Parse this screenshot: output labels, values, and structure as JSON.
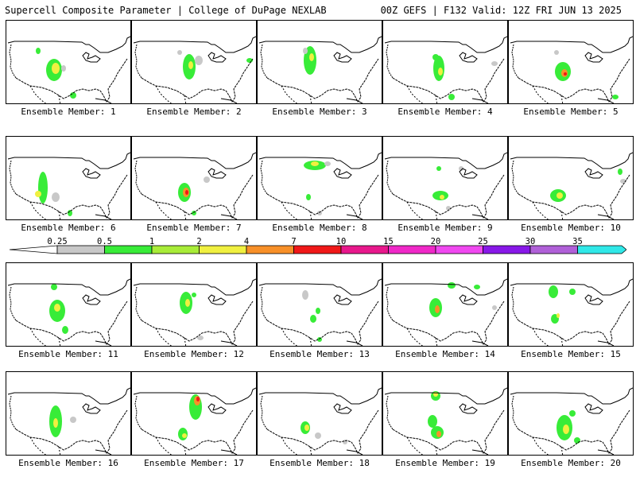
{
  "header": {
    "left_title": "Supercell Composite Parameter | College of DuPage NEXLAB",
    "right_title": "00Z GEFS | F132 Valid: 12Z FRI JUN 13 2025"
  },
  "legend": {
    "ticks": [
      "0.25",
      "0.5",
      "1",
      "2",
      "4",
      "7",
      "10",
      "15",
      "20",
      "25",
      "30",
      "35"
    ],
    "colors": [
      "#c8c8c8",
      "#38ec38",
      "#a8ec38",
      "#f0f040",
      "#f89028",
      "#f01818",
      "#e8188c",
      "#f028c8",
      "#f048f0",
      "#8818e8",
      "#b060d8",
      "#30e8e8"
    ]
  },
  "members": [
    {
      "label": "Ensemble Member: 1"
    },
    {
      "label": "Ensemble Member: 2"
    },
    {
      "label": "Ensemble Member: 3"
    },
    {
      "label": "Ensemble Member: 4"
    },
    {
      "label": "Ensemble Member: 5"
    },
    {
      "label": "Ensemble Member: 6"
    },
    {
      "label": "Ensemble Member: 7"
    },
    {
      "label": "Ensemble Member: 8"
    },
    {
      "label": "Ensemble Member: 9"
    },
    {
      "label": "Ensemble Member: 10"
    },
    {
      "label": "Ensemble Member: 11"
    },
    {
      "label": "Ensemble Member: 12"
    },
    {
      "label": "Ensemble Member: 13"
    },
    {
      "label": "Ensemble Member: 14"
    },
    {
      "label": "Ensemble Member: 15"
    },
    {
      "label": "Ensemble Member: 16"
    },
    {
      "label": "Ensemble Member: 17"
    },
    {
      "label": "Ensemble Member: 18"
    },
    {
      "label": "Ensemble Member: 19"
    },
    {
      "label": "Ensemble Member: 20"
    }
  ]
}
